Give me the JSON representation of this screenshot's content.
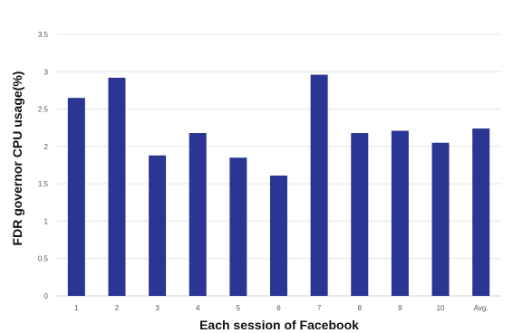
{
  "chart_data": {
    "type": "bar",
    "title": "",
    "xlabel": "Each session of Facebook",
    "ylabel": "FDR governor CPU usage(%)",
    "categories": [
      "1",
      "2",
      "3",
      "4",
      "5",
      "6",
      "7",
      "8",
      "9",
      "10",
      "Avg."
    ],
    "series": [
      {
        "values": [
          2.65,
          2.92,
          1.88,
          2.18,
          1.85,
          1.61,
          2.96,
          2.18,
          2.21,
          2.05,
          2.24
        ],
        "color": "#2b3593"
      }
    ],
    "ylim": [
      0,
      3.5
    ],
    "yticks": [
      "0",
      "0.5",
      "1",
      "1.5",
      "2",
      "2.5",
      "3",
      "3.5"
    ],
    "grid": true,
    "legend": "none"
  }
}
